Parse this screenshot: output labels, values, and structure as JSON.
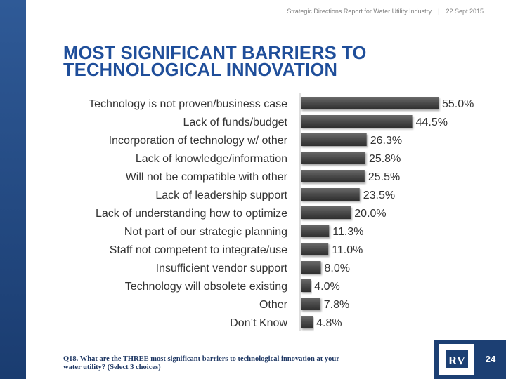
{
  "header": {
    "report_title": "Strategic Directions Report for Water Utility Industry",
    "separator": "|",
    "date": "22 Sept 2015"
  },
  "title": {
    "line1": "MOST SIGNIFICANT BARRIERS TO",
    "line2": "TECHNOLOGICAL INNOVATION"
  },
  "chart_data": {
    "type": "bar",
    "orientation": "horizontal",
    "title": "MOST SIGNIFICANT BARRIERS TO TECHNOLOGICAL INNOVATION",
    "xlabel": "",
    "ylabel": "",
    "xlim": [
      0,
      60
    ],
    "grid": false,
    "categories": [
      "Technology is not proven/business case",
      "Lack of funds/budget",
      "Incorporation of technology w/ other",
      "Lack of knowledge/information",
      "Will not be compatible with other",
      "Lack of leadership support",
      "Lack of understanding how to optimize",
      "Not part of our strategic planning",
      "Staff not competent to integrate/use",
      "Insufficient vendor support",
      "Technology will obsolete existing",
      "Other",
      "Don’t Know"
    ],
    "values": [
      55.0,
      44.5,
      26.3,
      25.8,
      25.5,
      23.5,
      20.0,
      11.3,
      11.0,
      8.0,
      4.0,
      7.8,
      4.8
    ],
    "value_labels": [
      "55.0%",
      "44.5%",
      "26.3%",
      "25.8%",
      "25.5%",
      "23.5%",
      "20.0%",
      "11.3%",
      "11.0%",
      "8.0%",
      "4.0%",
      "7.8%",
      "4.8%"
    ],
    "bar_color": "#4a4a4a"
  },
  "footnote": {
    "line1": "Q18. What are the THREE most significant barriers to technological innovation at your",
    "line2": "water utility? (Select 3 choices)"
  },
  "footer": {
    "logo_text": "RV",
    "page_number": "24"
  },
  "colors": {
    "title": "#1f4e9a",
    "band": "#1f4378",
    "footer": "#1c3f73"
  }
}
